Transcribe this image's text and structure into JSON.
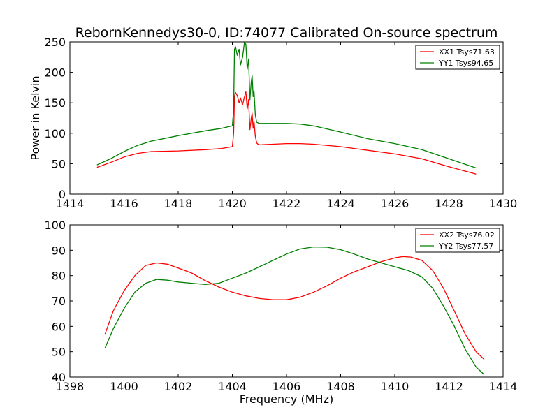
{
  "figure": {
    "title": "RebornKennedys30-0, ID:74077 Calibrated On-source spectrum"
  },
  "chart_data": [
    {
      "type": "line",
      "title": "RebornKennedys30-0, ID:74077 Calibrated On-source spectrum",
      "xlabel": "",
      "ylabel": "Power in Kelvin",
      "xlim": [
        1414,
        1430
      ],
      "ylim": [
        0,
        250
      ],
      "xticks": [
        1414,
        1416,
        1418,
        1420,
        1422,
        1424,
        1426,
        1428,
        1430
      ],
      "yticks": [
        0,
        50,
        100,
        150,
        200,
        250
      ],
      "grid": false,
      "legend_position": "top-right",
      "series": [
        {
          "name": "XX1 Tsys71.63",
          "color": "#ff0000",
          "x": [
            1415.0,
            1415.5,
            1416.0,
            1416.5,
            1417.0,
            1418.0,
            1419.0,
            1419.6,
            1420.0,
            1420.05,
            1420.08,
            1420.12,
            1420.18,
            1420.25,
            1420.3,
            1420.38,
            1420.45,
            1420.5,
            1420.55,
            1420.6,
            1420.65,
            1420.7,
            1420.73,
            1420.77,
            1420.8,
            1420.85,
            1420.9,
            1420.95,
            1421.0,
            1421.5,
            1422.0,
            1422.5,
            1423.0,
            1424.0,
            1425.0,
            1426.0,
            1427.0,
            1428.0,
            1429.0
          ],
          "y": [
            44,
            52,
            61,
            67,
            70,
            71,
            73,
            75,
            78,
            100,
            160,
            167,
            162,
            150,
            158,
            147,
            160,
            168,
            140,
            155,
            106,
            125,
            133,
            108,
            120,
            95,
            84,
            82,
            81,
            82,
            83,
            83,
            82,
            78,
            72,
            66,
            58,
            45,
            33
          ]
        },
        {
          "name": "YY1 Tsys94.65",
          "color": "#008000",
          "x": [
            1415.0,
            1415.5,
            1416.0,
            1416.5,
            1417.0,
            1418.0,
            1419.0,
            1419.6,
            1420.0,
            1420.05,
            1420.08,
            1420.12,
            1420.18,
            1420.25,
            1420.3,
            1420.38,
            1420.45,
            1420.5,
            1420.55,
            1420.6,
            1420.65,
            1420.7,
            1420.73,
            1420.77,
            1420.8,
            1420.85,
            1420.9,
            1420.95,
            1421.0,
            1421.5,
            1422.0,
            1422.5,
            1423.0,
            1424.0,
            1425.0,
            1426.0,
            1427.0,
            1428.0,
            1429.0
          ],
          "y": [
            48,
            58,
            70,
            80,
            87,
            96,
            104,
            108,
            112,
            140,
            238,
            242,
            228,
            238,
            212,
            225,
            250,
            246,
            205,
            222,
            155,
            185,
            195,
            160,
            170,
            130,
            118,
            117,
            116,
            116,
            116,
            115,
            112,
            102,
            91,
            83,
            73,
            58,
            43
          ]
        }
      ]
    },
    {
      "type": "line",
      "title": "",
      "xlabel": "Frequency (MHz)",
      "ylabel": "",
      "xlim": [
        1398,
        1414
      ],
      "ylim": [
        40,
        100
      ],
      "xticks": [
        1398,
        1400,
        1402,
        1404,
        1406,
        1408,
        1410,
        1412,
        1414
      ],
      "yticks": [
        40,
        50,
        60,
        70,
        80,
        90,
        100
      ],
      "grid": false,
      "legend_position": "top-right",
      "series": [
        {
          "name": "XX2 Tsys76.02",
          "color": "#ff0000",
          "x": [
            1399.3,
            1399.6,
            1400.0,
            1400.4,
            1400.8,
            1401.2,
            1401.6,
            1402.0,
            1402.5,
            1403.0,
            1403.5,
            1404.0,
            1404.5,
            1405.0,
            1405.5,
            1406.0,
            1406.5,
            1407.0,
            1407.5,
            1408.0,
            1408.5,
            1409.0,
            1409.5,
            1410.0,
            1410.3,
            1410.6,
            1411.0,
            1411.4,
            1411.8,
            1412.2,
            1412.6,
            1413.0,
            1413.3
          ],
          "y": [
            57,
            66,
            74,
            80,
            84,
            85,
            84.5,
            83,
            81,
            78,
            75.5,
            73.5,
            72,
            71,
            70.5,
            70.5,
            71.5,
            73.5,
            76,
            79,
            81.5,
            83.5,
            85.5,
            87,
            87.5,
            87.3,
            86,
            82,
            75,
            66,
            57,
            50,
            47
          ]
        },
        {
          "name": "YY2 Tsys77.57",
          "color": "#008000",
          "x": [
            1399.3,
            1399.6,
            1400.0,
            1400.4,
            1400.8,
            1401.2,
            1401.6,
            1402.0,
            1402.5,
            1403.0,
            1403.5,
            1404.0,
            1404.5,
            1405.0,
            1405.5,
            1406.0,
            1406.5,
            1407.0,
            1407.5,
            1408.0,
            1408.5,
            1409.0,
            1409.5,
            1410.0,
            1410.5,
            1411.0,
            1411.4,
            1411.8,
            1412.2,
            1412.6,
            1413.0,
            1413.3
          ],
          "y": [
            51.5,
            59,
            67,
            73.5,
            77,
            78.5,
            78.2,
            77.5,
            77,
            76.5,
            77,
            79,
            81,
            83.5,
            86,
            88.5,
            90.5,
            91.3,
            91.2,
            90.2,
            88.5,
            86.5,
            85,
            83.5,
            82,
            79.5,
            75,
            68,
            60,
            51,
            44,
            41
          ]
        }
      ]
    }
  ]
}
